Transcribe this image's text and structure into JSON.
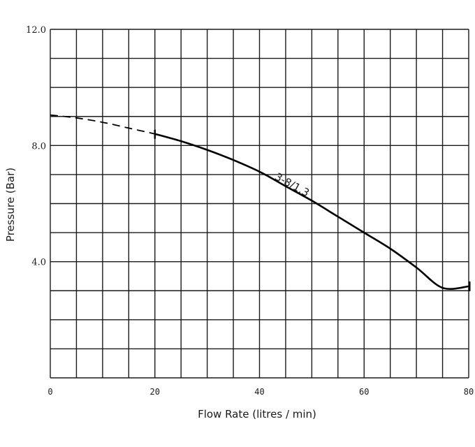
{
  "chart_data": {
    "type": "line",
    "title": "",
    "xlabel": "Flow Rate (litres / min)",
    "ylabel": "Pressure (Bar)",
    "xlim": [
      0,
      80
    ],
    "ylim": [
      0,
      12
    ],
    "x_ticks": [
      {
        "value": 0,
        "label": "0"
      },
      {
        "value": 20,
        "label": "20"
      },
      {
        "value": 40,
        "label": "40"
      },
      {
        "value": 60,
        "label": "60"
      },
      {
        "value": 80,
        "label": "80"
      }
    ],
    "y_ticks": [
      {
        "value": 4,
        "label": "4.0"
      },
      {
        "value": 8,
        "label": "8.0"
      },
      {
        "value": 12,
        "label": "12.0"
      }
    ],
    "grid": true,
    "grid_step_x": 5,
    "grid_step_y": 1,
    "series": [
      {
        "name": "3-8/1.3",
        "dashed_until_x": 20,
        "x": [
          0,
          5,
          10,
          15,
          20,
          25,
          30,
          35,
          40,
          45,
          50,
          55,
          60,
          65,
          70,
          75,
          80
        ],
        "y": [
          9.05,
          8.95,
          8.8,
          8.6,
          8.4,
          8.15,
          7.85,
          7.5,
          7.1,
          6.6,
          6.1,
          5.55,
          5.0,
          4.45,
          3.8,
          3.1,
          3.15
        ]
      }
    ]
  }
}
